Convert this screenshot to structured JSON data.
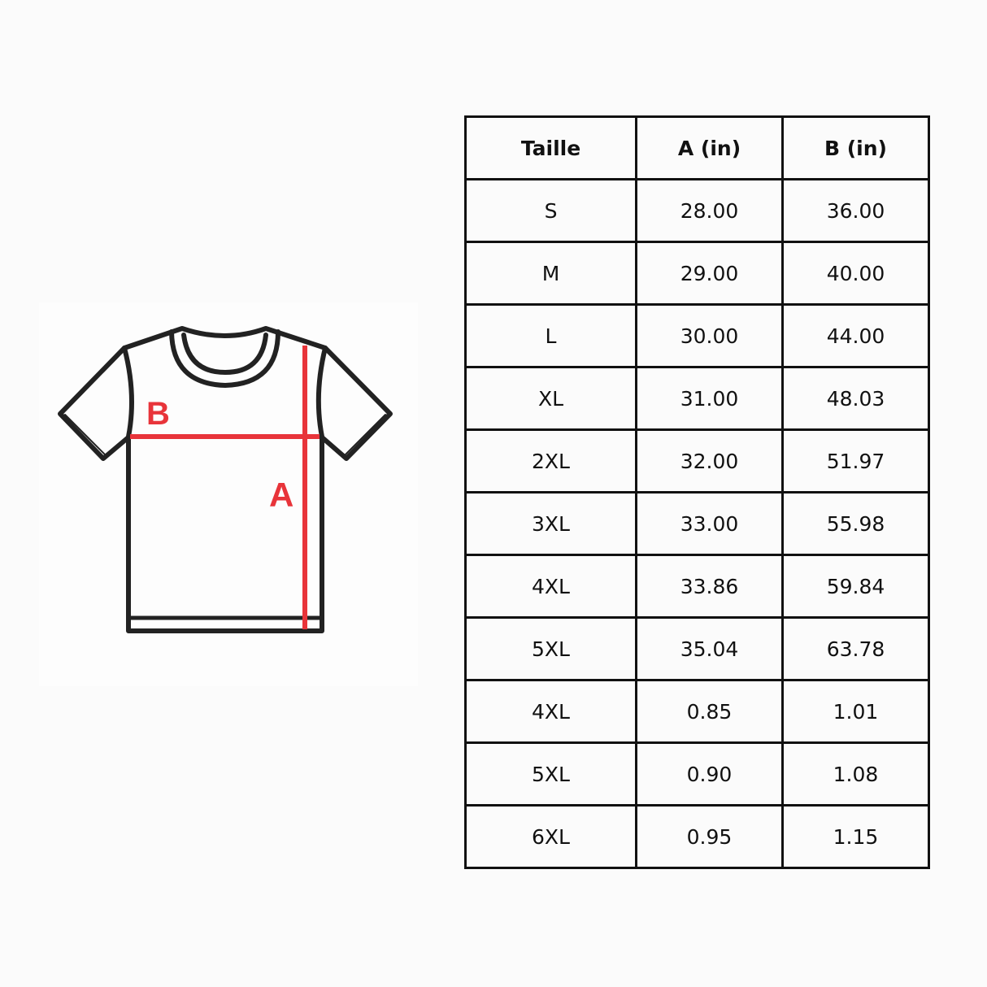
{
  "illustration": {
    "label_a": "A",
    "label_b": "B",
    "measure_color": "#e8343a",
    "outline_color": "#222222"
  },
  "table": {
    "headers": [
      "Taille",
      "A (in)",
      "B (in)"
    ],
    "rows": [
      [
        "S",
        "28.00",
        "36.00"
      ],
      [
        "M",
        "29.00",
        "40.00"
      ],
      [
        "L",
        "30.00",
        "44.00"
      ],
      [
        "XL",
        "31.00",
        "48.03"
      ],
      [
        "2XL",
        "32.00",
        "51.97"
      ],
      [
        "3XL",
        "33.00",
        "55.98"
      ],
      [
        "4XL",
        "33.86",
        "59.84"
      ],
      [
        "5XL",
        "35.04",
        "63.78"
      ],
      [
        "4XL",
        "0.85",
        "1.01"
      ],
      [
        "5XL",
        "0.90",
        "1.08"
      ],
      [
        "6XL",
        "0.95",
        "1.15"
      ]
    ]
  }
}
